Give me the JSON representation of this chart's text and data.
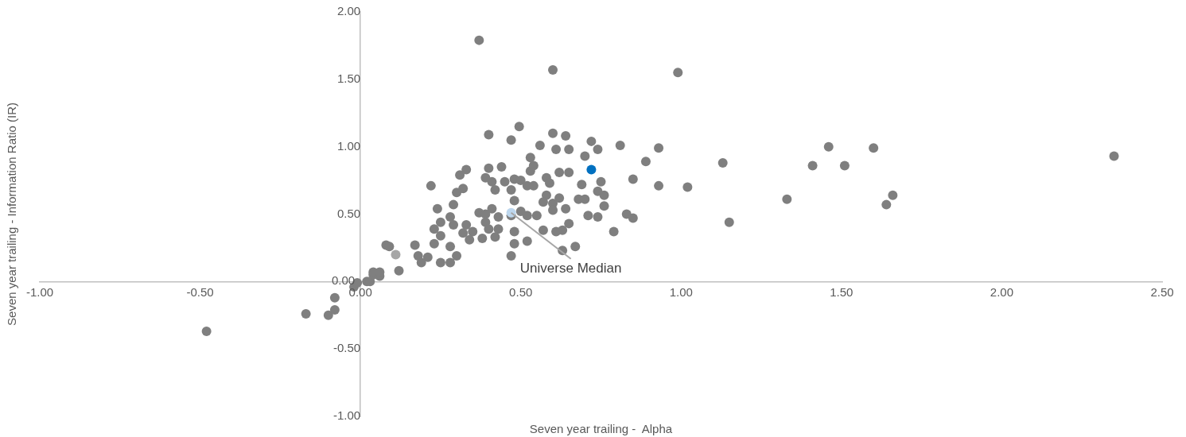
{
  "chart_data": {
    "type": "scatter",
    "xlabel": "Seven year trailing -  Alpha",
    "ylabel": "Seven year trailing - Information Ratio (IR)",
    "xlim": [
      -1,
      2.5
    ],
    "ylim": [
      -1,
      2
    ],
    "xticks": [
      {
        "value": -1,
        "label": "-1.00"
      },
      {
        "value": -0.5,
        "label": "-0.50"
      },
      {
        "value": 0,
        "label": "0.00"
      },
      {
        "value": 0.5,
        "label": "0.50"
      },
      {
        "value": 1,
        "label": "1.00"
      },
      {
        "value": 1.5,
        "label": "1.50"
      },
      {
        "value": 2,
        "label": "2.00"
      },
      {
        "value": 2.5,
        "label": "2.50"
      }
    ],
    "yticks": [
      {
        "value": -1,
        "label": "-1.00"
      },
      {
        "value": -0.5,
        "label": "-0.50"
      },
      {
        "value": 0,
        "label": "0.00"
      },
      {
        "value": 0.5,
        "label": "0.50"
      },
      {
        "value": 1,
        "label": "1.00"
      },
      {
        "value": 1.5,
        "label": "1.50"
      },
      {
        "value": 2,
        "label": "2.00"
      }
    ],
    "grid": false,
    "legend": false,
    "marker": "circle",
    "annotations": [
      {
        "text": "Universe Median",
        "x": 0.47,
        "y": 0.51
      }
    ],
    "series": [
      {
        "color": "#7f7f7f",
        "x": [
          0.37,
          0.6,
          0.99,
          0.495,
          0.4,
          0.47,
          0.53,
          0.4,
          0.44,
          0.33,
          0.31,
          0.39,
          0.41,
          0.45,
          0.48,
          0.5,
          0.52,
          0.53,
          0.22,
          0.32,
          0.3,
          0.42,
          0.47,
          0.48,
          0.29,
          0.24,
          0.41,
          0.37,
          0.39,
          0.43,
          0.47,
          0.5,
          0.52,
          0.28,
          0.25,
          0.29,
          0.33,
          0.39,
          0.4,
          0.43,
          0.23,
          0.48,
          0.25,
          0.32,
          0.35,
          0.34,
          0.38,
          0.42,
          0.52,
          0.48,
          0.23,
          0.28,
          0.17,
          0.08,
          0.18,
          0.21,
          0.3,
          0.47,
          0.25,
          0.28,
          0.19,
          0.6,
          0.64,
          0.56,
          0.61,
          0.65,
          0.72,
          0.74,
          0.81,
          0.93,
          0.7,
          0.89,
          0.54,
          0.62,
          0.65,
          0.58,
          0.59,
          0.69,
          0.75,
          0.85,
          0.93,
          1.02,
          0.54,
          0.74,
          0.76,
          0.58,
          0.62,
          0.68,
          0.7,
          0.57,
          0.6,
          0.76,
          0.64,
          0.6,
          0.55,
          0.71,
          0.74,
          0.83,
          0.85,
          0.65,
          0.61,
          0.63,
          0.57,
          0.79,
          0.67,
          0.63,
          1.13,
          1.46,
          1.6,
          1.41,
          1.51,
          2.35,
          1.33,
          1.66,
          1.64,
          1.15,
          -0.02,
          -0.01,
          0.02,
          0.03,
          0.04,
          0.06,
          0.09,
          0.04,
          0.06,
          0.12,
          -0.48,
          -0.17,
          -0.1,
          -0.08,
          -0.08
        ],
        "values": [
          1.79,
          1.57,
          1.55,
          1.15,
          1.09,
          1.05,
          0.92,
          0.84,
          0.85,
          0.83,
          0.79,
          0.77,
          0.74,
          0.74,
          0.76,
          0.75,
          0.71,
          0.82,
          0.71,
          0.69,
          0.66,
          0.68,
          0.68,
          0.6,
          0.57,
          0.54,
          0.54,
          0.51,
          0.5,
          0.48,
          0.49,
          0.52,
          0.49,
          0.48,
          0.44,
          0.42,
          0.42,
          0.44,
          0.39,
          0.39,
          0.39,
          0.37,
          0.34,
          0.36,
          0.37,
          0.31,
          0.32,
          0.33,
          0.3,
          0.28,
          0.28,
          0.26,
          0.27,
          0.27,
          0.19,
          0.18,
          0.19,
          0.19,
          0.14,
          0.14,
          0.14,
          1.1,
          1.08,
          1.01,
          0.98,
          0.98,
          1.04,
          0.98,
          1.01,
          0.99,
          0.93,
          0.89,
          0.86,
          0.81,
          0.81,
          0.77,
          0.73,
          0.72,
          0.74,
          0.76,
          0.71,
          0.7,
          0.71,
          0.67,
          0.64,
          0.64,
          0.62,
          0.61,
          0.61,
          0.59,
          0.58,
          0.56,
          0.54,
          0.53,
          0.49,
          0.49,
          0.48,
          0.5,
          0.47,
          0.43,
          0.37,
          0.38,
          0.38,
          0.37,
          0.26,
          0.23,
          0.88,
          1.0,
          0.99,
          0.86,
          0.86,
          0.93,
          0.61,
          0.64,
          0.57,
          0.44,
          -0.04,
          -0.01,
          0.0,
          0.0,
          0.05,
          0.04,
          0.26,
          0.07,
          0.07,
          0.08,
          -0.37,
          -0.24,
          -0.25,
          -0.21,
          -0.12
        ]
      },
      {
        "color": "#a6a6a6",
        "x": [
          0.11
        ],
        "values": [
          0.2
        ]
      },
      {
        "color": "#bdd7ee",
        "x": [
          0.47
        ],
        "values": [
          0.51
        ]
      },
      {
        "color": "#0070c0",
        "x": [
          0.72
        ],
        "values": [
          0.83
        ]
      }
    ]
  }
}
